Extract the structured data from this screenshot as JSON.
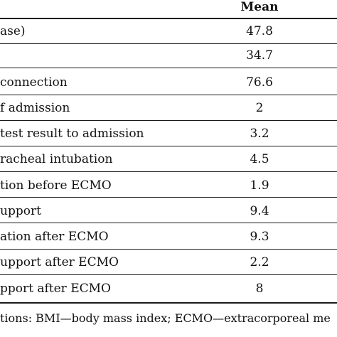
{
  "table": {
    "header": {
      "mean_label": "Mean"
    },
    "rows": [
      {
        "label": "ase)",
        "value": "47.8"
      },
      {
        "label": "",
        "value": "34.7"
      },
      {
        "label": " connection",
        "value": "76.6"
      },
      {
        "label": "f admission",
        "value": "2"
      },
      {
        "label": "test result to admission",
        "value": "3.2"
      },
      {
        "label": "racheal intubation",
        "value": "4.5"
      },
      {
        "label": "tion before ECMO",
        "value": "1.9"
      },
      {
        "label": "upport",
        "value": "9.4"
      },
      {
        "label": "ation after ECMO",
        "value": "9.3"
      },
      {
        "label": "upport after ECMO",
        "value": "2.2"
      },
      {
        "label": "pport after ECMO",
        "value": "8"
      }
    ]
  },
  "footnote": "tions: BMI—body mass index; ECMO—extracorporeal me"
}
